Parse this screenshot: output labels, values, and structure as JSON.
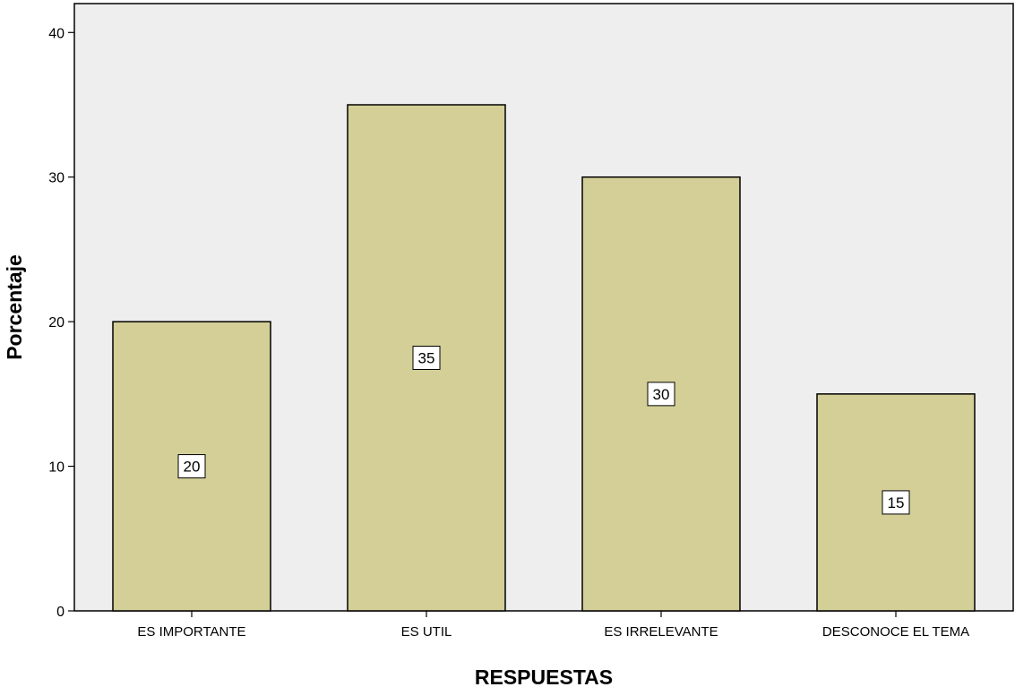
{
  "chart_data": {
    "type": "bar",
    "title": "",
    "xlabel": "RESPUESTAS",
    "ylabel": "Porcentaje",
    "categories": [
      "ES IMPORTANTE",
      "ES UTIL",
      "ES IRRELEVANTE",
      "DESCONOCE EL TEMA"
    ],
    "values": [
      20,
      35,
      30,
      15
    ],
    "data_labels": [
      "20",
      "35",
      "30",
      "15"
    ],
    "ylim": [
      0,
      42
    ],
    "yticks": [
      0,
      10,
      20,
      30,
      40
    ],
    "ytick_labels": [
      "0",
      "10",
      "20",
      "30",
      "40"
    ],
    "grid": false,
    "legend": "none",
    "colors": {
      "bar_fill": "#d4cf96",
      "bar_stroke": "#000000",
      "plot_background": "#eeeeee",
      "axis": "#000000",
      "label_box_fill": "#ffffff"
    }
  }
}
